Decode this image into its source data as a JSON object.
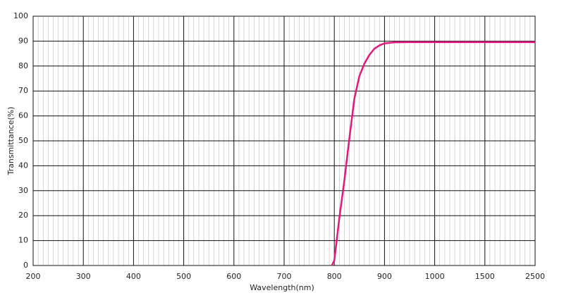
{
  "chart_data": {
    "type": "line",
    "x_label": "Wavelength(nm)",
    "y_label": "Transmittance(%)",
    "x": [
      795,
      800,
      810,
      820,
      830,
      840,
      850,
      860,
      870,
      880,
      890,
      900,
      920,
      950,
      1000,
      1500,
      2500
    ],
    "series": [
      {
        "color": "#e0197d",
        "values": [
          0,
          2,
          19,
          34,
          51,
          67,
          76,
          81,
          84.5,
          87,
          88.3,
          89.1,
          89.5,
          89.6,
          89.6,
          89.6,
          89.6
        ]
      }
    ],
    "xlim": [
      200,
      2500
    ],
    "xticks": [
      200,
      300,
      400,
      500,
      600,
      700,
      800,
      900,
      1000,
      1500,
      2500
    ],
    "ylim": [
      0,
      100
    ],
    "yticks": [
      0,
      10,
      20,
      30,
      40,
      50,
      60,
      70,
      80,
      90,
      100
    ],
    "grid": true
  }
}
